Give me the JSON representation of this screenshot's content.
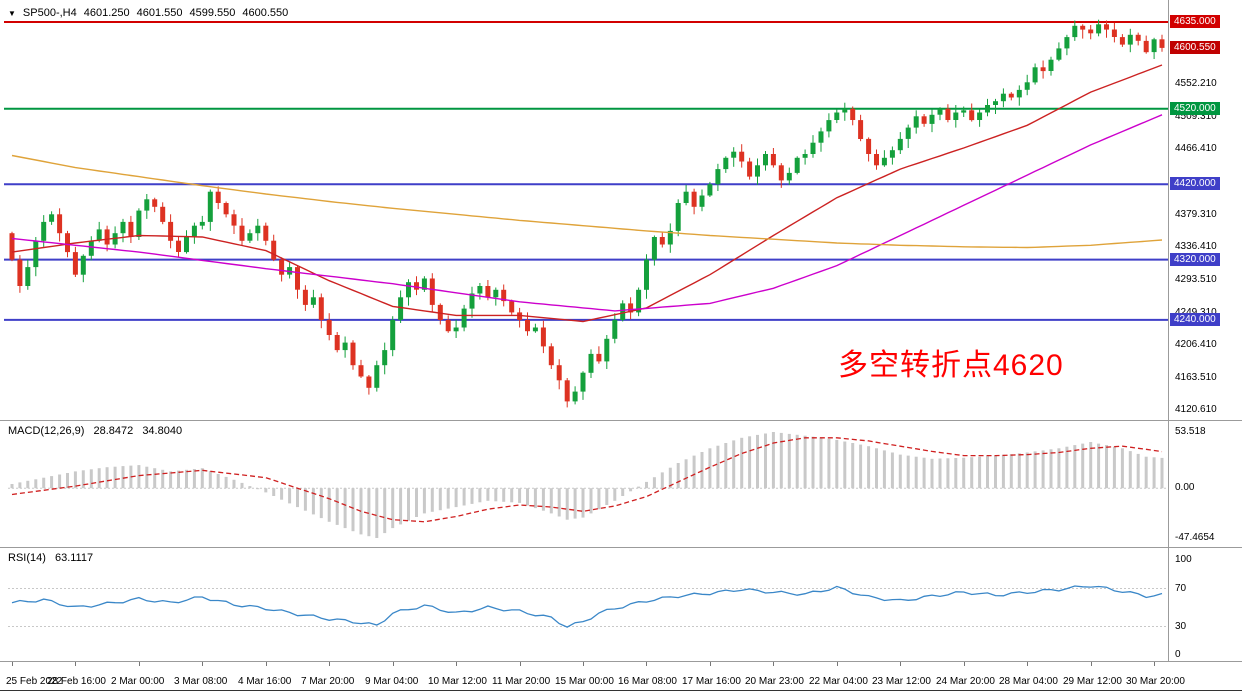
{
  "symbol_bar": {
    "dropdown_icon": "▼",
    "symbol": "SP500-,H4",
    "ohlc": {
      "open": "4601.250",
      "high": "4601.550",
      "low": "4599.550",
      "close": "4600.550"
    }
  },
  "annotation": {
    "text": "多空转折点4620",
    "color": "#ff0000"
  },
  "indicators": {
    "macd": {
      "label": "MACD(12,26,9)",
      "value_main": "28.8472",
      "value_signal": "34.8040"
    },
    "rsi": {
      "label": "RSI(14)",
      "value": "63.1117"
    }
  },
  "axes": {
    "main_ticks": [
      {
        "label": "4552.210",
        "price": 4552.21
      },
      {
        "label": "4509.310",
        "price": 4509.31
      },
      {
        "label": "4466.410",
        "price": 4466.41
      },
      {
        "label": "4379.310",
        "price": 4379.31
      },
      {
        "label": "4336.410",
        "price": 4336.41
      },
      {
        "label": "4293.510",
        "price": 4293.51
      },
      {
        "label": "4249.310",
        "price": 4249.31
      },
      {
        "label": "4206.410",
        "price": 4206.41
      },
      {
        "label": "4163.510",
        "price": 4163.51
      },
      {
        "label": "4120.610",
        "price": 4120.61
      }
    ],
    "main_badges": [
      {
        "label": "4635.000",
        "price": 4635.0,
        "bg": "#d20000"
      },
      {
        "label": "4600.550",
        "price": 4600.55,
        "bg": "#c00000"
      },
      {
        "label": "4520.000",
        "price": 4520.0,
        "bg": "#009640"
      },
      {
        "label": "4420.000",
        "price": 4420.0,
        "bg": "#3f3fc8"
      },
      {
        "label": "4320.000",
        "price": 4320.0,
        "bg": "#3f3fc8"
      },
      {
        "label": "4240.000",
        "price": 4240.0,
        "bg": "#3f3fc8"
      }
    ],
    "macd_ticks": [
      {
        "label": "53.518",
        "value": 53.518
      },
      {
        "label": "0.00",
        "value": 0
      },
      {
        "label": "-47.4654",
        "value": -47.4654
      }
    ],
    "rsi_ticks": [
      {
        "label": "100",
        "value": 100
      },
      {
        "label": "70",
        "value": 70
      },
      {
        "label": "30",
        "value": 30
      },
      {
        "label": "0",
        "value": 0
      }
    ]
  },
  "chart_data": {
    "type": "candlestick",
    "title": "SP500-,H4",
    "timeframe": "H4",
    "bars": 146,
    "ylim": [
      4120.61,
      4635.0
    ],
    "current_price": 4600.55,
    "candle_colors": {
      "up": "#14a03c",
      "down": "#dd3222"
    },
    "open_first": 4355,
    "closes": [
      4320,
      4285,
      4310,
      4345,
      4370,
      4380,
      4355,
      4330,
      4300,
      4325,
      4345,
      4360,
      4340,
      4355,
      4370,
      4350,
      4385,
      4400,
      4390,
      4370,
      4345,
      4330,
      4350,
      4365,
      4370,
      4410,
      4395,
      4380,
      4365,
      4345,
      4355,
      4365,
      4345,
      4320,
      4300,
      4310,
      4280,
      4260,
      4270,
      4240,
      4220,
      4200,
      4210,
      4180,
      4165,
      4150,
      4180,
      4200,
      4240,
      4270,
      4290,
      4280,
      4295,
      4260,
      4240,
      4225,
      4230,
      4255,
      4275,
      4285,
      4270,
      4280,
      4265,
      4250,
      4240,
      4225,
      4230,
      4205,
      4180,
      4160,
      4132,
      4145,
      4170,
      4195,
      4185,
      4215,
      4240,
      4262,
      4250,
      4280,
      4320,
      4350,
      4340,
      4358,
      4395,
      4410,
      4390,
      4405,
      4420,
      4440,
      4455,
      4463,
      4450,
      4430,
      4445,
      4460,
      4445,
      4425,
      4435,
      4455,
      4460,
      4475,
      4490,
      4505,
      4515,
      4520,
      4505,
      4480,
      4460,
      4445,
      4455,
      4465,
      4480,
      4495,
      4510,
      4500,
      4512,
      4520,
      4505,
      4515,
      4518,
      4505,
      4515,
      4525,
      4530,
      4540,
      4535,
      4545,
      4555,
      4575,
      4570,
      4585,
      4600,
      4615,
      4630,
      4625,
      4620,
      4632,
      4625,
      4615,
      4605,
      4618,
      4610,
      4595,
      4612,
      4600.55
    ],
    "levels": [
      {
        "price": 4635.0,
        "color": "#d20000",
        "width": 2,
        "label": "4635.000"
      },
      {
        "price": 4520.0,
        "color": "#009640",
        "width": 2,
        "label": "4520.000"
      },
      {
        "price": 4420.0,
        "color": "#3f3fc8",
        "width": 2,
        "label": "4420.000"
      },
      {
        "price": 4320.0,
        "color": "#3f3fc8",
        "width": 2,
        "label": "4320.000"
      },
      {
        "price": 4240.0,
        "color": "#3f3fc8",
        "width": 2,
        "label": "4240.000"
      }
    ],
    "moving_averages": [
      {
        "name": "ma-fast-red",
        "color": "#cc2222",
        "points": [
          [
            0,
            4330
          ],
          [
            8,
            4342
          ],
          [
            16,
            4352
          ],
          [
            24,
            4350
          ],
          [
            32,
            4332
          ],
          [
            40,
            4292
          ],
          [
            48,
            4258
          ],
          [
            56,
            4246
          ],
          [
            64,
            4246
          ],
          [
            72,
            4238
          ],
          [
            80,
            4256
          ],
          [
            88,
            4300
          ],
          [
            96,
            4352
          ],
          [
            104,
            4402
          ],
          [
            112,
            4440
          ],
          [
            120,
            4468
          ],
          [
            128,
            4498
          ],
          [
            136,
            4542
          ],
          [
            145,
            4578
          ]
        ]
      },
      {
        "name": "ma-mid-magenta",
        "color": "#cc00cc",
        "points": [
          [
            0,
            4348
          ],
          [
            16,
            4330
          ],
          [
            32,
            4308
          ],
          [
            48,
            4288
          ],
          [
            64,
            4264
          ],
          [
            76,
            4252
          ],
          [
            88,
            4262
          ],
          [
            96,
            4282
          ],
          [
            104,
            4312
          ],
          [
            112,
            4352
          ],
          [
            120,
            4392
          ],
          [
            128,
            4432
          ],
          [
            136,
            4472
          ],
          [
            145,
            4512
          ]
        ]
      },
      {
        "name": "ma-slow-orange",
        "color": "#dfa33a",
        "points": [
          [
            0,
            4458
          ],
          [
            8,
            4442
          ],
          [
            16,
            4430
          ],
          [
            24,
            4418
          ],
          [
            32,
            4407
          ],
          [
            40,
            4397
          ],
          [
            48,
            4388
          ],
          [
            56,
            4380
          ],
          [
            64,
            4372
          ],
          [
            72,
            4365
          ],
          [
            80,
            4358
          ],
          [
            88,
            4352
          ],
          [
            96,
            4347
          ],
          [
            104,
            4342
          ],
          [
            112,
            4339
          ],
          [
            120,
            4337
          ],
          [
            128,
            4336
          ],
          [
            136,
            4339
          ],
          [
            145,
            4346
          ]
        ]
      }
    ],
    "macd": {
      "params": "12,26,9",
      "ylim": [
        -47.4654,
        53.518
      ],
      "current": 28.8472,
      "signal_current": 34.804,
      "histogram_color": "#c9c9c9",
      "signal_color": "#cf2020",
      "histogram_anchors": [
        [
          0,
          4
        ],
        [
          4,
          10
        ],
        [
          8,
          16
        ],
        [
          12,
          20
        ],
        [
          16,
          22
        ],
        [
          20,
          16
        ],
        [
          24,
          19
        ],
        [
          28,
          8
        ],
        [
          32,
          -4
        ],
        [
          36,
          -18
        ],
        [
          40,
          -32
        ],
        [
          44,
          -44
        ],
        [
          46,
          -47.5
        ],
        [
          48,
          -38
        ],
        [
          52,
          -24
        ],
        [
          56,
          -18
        ],
        [
          60,
          -12
        ],
        [
          64,
          -14
        ],
        [
          68,
          -24
        ],
        [
          70,
          -30
        ],
        [
          72,
          -28
        ],
        [
          76,
          -12
        ],
        [
          80,
          6
        ],
        [
          84,
          24
        ],
        [
          88,
          38
        ],
        [
          92,
          48
        ],
        [
          96,
          53.5
        ],
        [
          100,
          50
        ],
        [
          104,
          46
        ],
        [
          108,
          40
        ],
        [
          112,
          32
        ],
        [
          116,
          28
        ],
        [
          120,
          29
        ],
        [
          124,
          31
        ],
        [
          128,
          34
        ],
        [
          132,
          38
        ],
        [
          136,
          44
        ],
        [
          140,
          38
        ],
        [
          143,
          30
        ],
        [
          145,
          28.85
        ]
      ],
      "signal_anchors": [
        [
          0,
          -6
        ],
        [
          8,
          2
        ],
        [
          16,
          12
        ],
        [
          24,
          17
        ],
        [
          32,
          10
        ],
        [
          40,
          -10
        ],
        [
          44,
          -22
        ],
        [
          48,
          -30
        ],
        [
          52,
          -32
        ],
        [
          56,
          -27
        ],
        [
          60,
          -20
        ],
        [
          64,
          -16
        ],
        [
          68,
          -18
        ],
        [
          72,
          -22
        ],
        [
          76,
          -17
        ],
        [
          80,
          -8
        ],
        [
          84,
          6
        ],
        [
          88,
          20
        ],
        [
          92,
          33
        ],
        [
          96,
          43
        ],
        [
          100,
          48
        ],
        [
          104,
          48
        ],
        [
          108,
          45
        ],
        [
          112,
          40
        ],
        [
          116,
          35
        ],
        [
          120,
          31
        ],
        [
          124,
          31
        ],
        [
          128,
          32
        ],
        [
          132,
          34
        ],
        [
          136,
          38
        ],
        [
          140,
          40
        ],
        [
          143,
          37
        ],
        [
          145,
          34.8
        ]
      ]
    },
    "rsi": {
      "period": 14,
      "current": 63.1117,
      "ylim": [
        0,
        100
      ],
      "levels": [
        70,
        30
      ],
      "color": "#3a87c8",
      "anchors": [
        [
          0,
          55
        ],
        [
          4,
          58
        ],
        [
          8,
          50
        ],
        [
          12,
          54
        ],
        [
          16,
          59
        ],
        [
          20,
          55
        ],
        [
          24,
          61
        ],
        [
          28,
          53
        ],
        [
          32,
          49
        ],
        [
          36,
          43
        ],
        [
          40,
          38
        ],
        [
          44,
          34
        ],
        [
          46,
          31
        ],
        [
          48,
          44
        ],
        [
          52,
          52
        ],
        [
          56,
          44
        ],
        [
          60,
          50
        ],
        [
          64,
          46
        ],
        [
          68,
          39
        ],
        [
          70,
          30
        ],
        [
          72,
          35
        ],
        [
          74,
          44
        ],
        [
          76,
          49
        ],
        [
          80,
          57
        ],
        [
          84,
          62
        ],
        [
          88,
          65
        ],
        [
          92,
          69
        ],
        [
          96,
          66
        ],
        [
          100,
          64
        ],
        [
          104,
          71
        ],
        [
          108,
          61
        ],
        [
          112,
          57
        ],
        [
          116,
          62
        ],
        [
          120,
          66
        ],
        [
          124,
          63
        ],
        [
          128,
          66
        ],
        [
          132,
          69
        ],
        [
          136,
          73
        ],
        [
          140,
          67
        ],
        [
          143,
          62
        ],
        [
          145,
          63.11
        ]
      ]
    },
    "x_labels": [
      {
        "bar": 0,
        "label": "25 Feb 2022"
      },
      {
        "bar": 8,
        "label": "28 Feb 16:00"
      },
      {
        "bar": 16,
        "label": "2 Mar 00:00"
      },
      {
        "bar": 24,
        "label": "3 Mar 08:00"
      },
      {
        "bar": 32,
        "label": "4 Mar 16:00"
      },
      {
        "bar": 40,
        "label": "7 Mar 20:00"
      },
      {
        "bar": 48,
        "label": "9 Mar 04:00"
      },
      {
        "bar": 56,
        "label": "10 Mar 12:00"
      },
      {
        "bar": 64,
        "label": "11 Mar 20:00"
      },
      {
        "bar": 72,
        "label": "15 Mar 00:00"
      },
      {
        "bar": 80,
        "label": "16 Mar 08:00"
      },
      {
        "bar": 88,
        "label": "17 Mar 16:00"
      },
      {
        "bar": 96,
        "label": "20 Mar 23:00"
      },
      {
        "bar": 104,
        "label": "22 Mar 04:00"
      },
      {
        "bar": 112,
        "label": "23 Mar 12:00"
      },
      {
        "bar": 120,
        "label": "24 Mar 20:00"
      },
      {
        "bar": 128,
        "label": "28 Mar 04:00"
      },
      {
        "bar": 136,
        "label": "29 Mar 12:00"
      },
      {
        "bar": 144,
        "label": "30 Mar 20:00"
      }
    ]
  }
}
